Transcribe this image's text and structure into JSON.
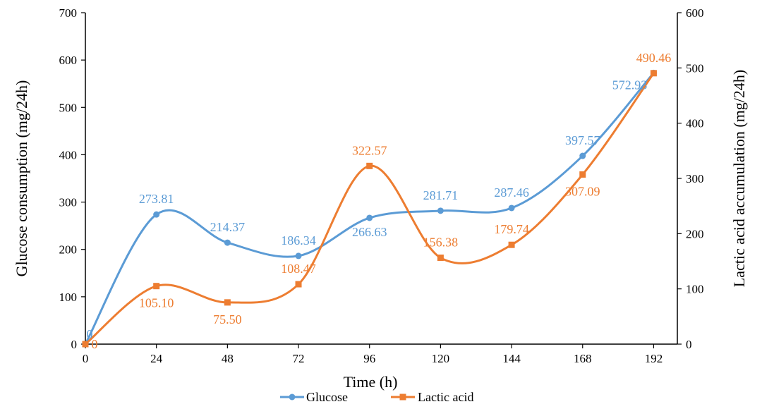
{
  "chart_data": {
    "type": "line",
    "smooth": true,
    "x": [
      0,
      24,
      48,
      72,
      96,
      120,
      144,
      168,
      192
    ],
    "xlabel": "Time (h)",
    "xlim": [
      0,
      200
    ],
    "x_ticks": [
      "0",
      "24",
      "48",
      "72",
      "96",
      "120",
      "144",
      "168",
      "192"
    ],
    "y_left": {
      "label": "Glucose consumption (mg/24h)",
      "lim": [
        0,
        700
      ],
      "ticks": [
        "0",
        "100",
        "200",
        "300",
        "400",
        "500",
        "600",
        "700"
      ]
    },
    "y_right": {
      "label": "Lactic acid  accumulation (mg/24h)",
      "lim": [
        0,
        600
      ],
      "ticks": [
        "0",
        "100",
        "200",
        "300",
        "400",
        "500",
        "600"
      ]
    },
    "series": [
      {
        "name": "Glucose",
        "axis": "left",
        "color": "#5B9BD5",
        "marker": "circle",
        "values": [
          0,
          273.81,
          214.37,
          186.34,
          266.63,
          281.71,
          287.46,
          397.57,
          572.93
        ],
        "labels": [
          "0",
          "273.81",
          "214.37",
          "186.34",
          "266.63",
          "281.71",
          "287.46",
          "397.57",
          "572.93"
        ]
      },
      {
        "name": "Lactic acid",
        "axis": "right",
        "color": "#ED7D31",
        "marker": "square",
        "values": [
          0,
          105.1,
          75.5,
          108.47,
          322.57,
          156.38,
          179.74,
          307.09,
          490.46
        ],
        "labels": [
          "0",
          "105.10",
          "75.50",
          "108.47",
          "322.57",
          "156.38",
          "179.74",
          "307.09",
          "490.46"
        ]
      }
    ],
    "grid": false,
    "legend": "bottom"
  }
}
